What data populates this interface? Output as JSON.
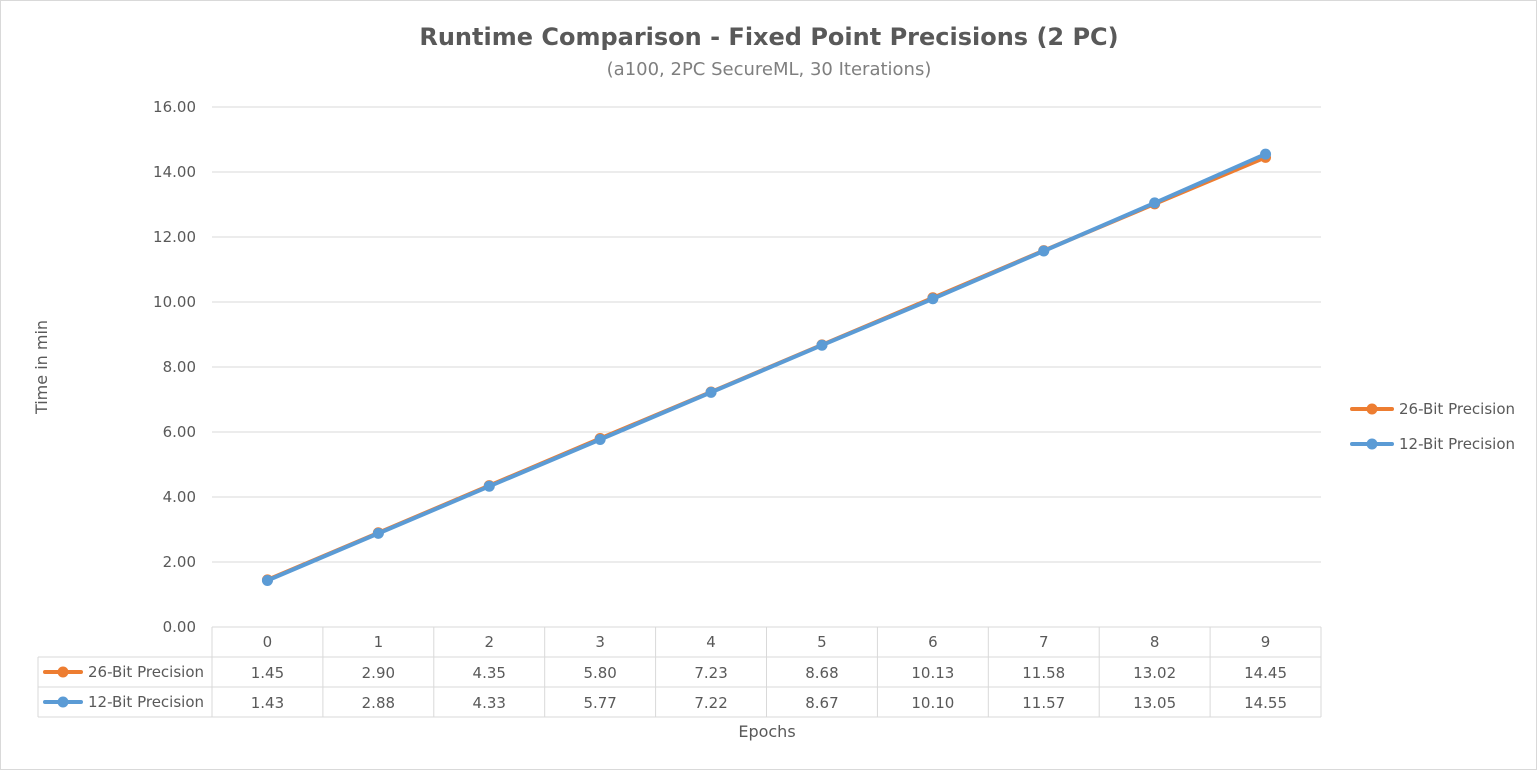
{
  "chart_data": {
    "type": "line",
    "title": "Runtime Comparison - Fixed Point Precisions (2 PC)",
    "subtitle": "(a100, 2PC SecureML, 30 Iterations)",
    "xlabel": "Epochs",
    "ylabel": "Time in min",
    "categories": [
      "0",
      "1",
      "2",
      "3",
      "4",
      "5",
      "6",
      "7",
      "8",
      "9"
    ],
    "ylim": [
      0,
      16
    ],
    "ytick_step": 2,
    "y_tick_labels": [
      "0.00",
      "2.00",
      "4.00",
      "6.00",
      "8.00",
      "10.00",
      "12.00",
      "14.00",
      "16.00"
    ],
    "grid": true,
    "legend_position": "right",
    "data_table": true,
    "series": [
      {
        "name": "26-Bit Precision",
        "color": "#ed7d31",
        "values": [
          1.45,
          2.9,
          4.35,
          5.8,
          7.23,
          8.68,
          10.13,
          11.58,
          13.02,
          14.45
        ],
        "display_values": [
          "1.45",
          "2.90",
          "4.35",
          "5.80",
          "7.23",
          "8.68",
          "10.13",
          "11.58",
          "13.02",
          "14.45"
        ]
      },
      {
        "name": "12-Bit Precision",
        "color": "#5b9bd5",
        "values": [
          1.43,
          2.88,
          4.33,
          5.77,
          7.22,
          8.67,
          10.1,
          11.57,
          13.05,
          14.55
        ],
        "display_values": [
          "1.43",
          "2.88",
          "4.33",
          "5.77",
          "7.22",
          "8.67",
          "10.10",
          "11.57",
          "13.05",
          "14.55"
        ]
      }
    ]
  }
}
